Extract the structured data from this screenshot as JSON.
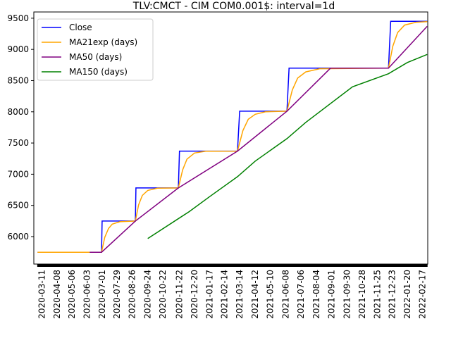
{
  "chart_data": {
    "type": "line",
    "title": "TLV:CMCT - CIM COM0.001$: interval=1d",
    "xlabel": "",
    "ylabel": "",
    "ylim": [
      5560,
      9600
    ],
    "xlim": [
      "2020-02-25",
      "2022-02-27"
    ],
    "yticks": [
      6000,
      6500,
      7000,
      7500,
      8000,
      8500,
      9000,
      9500
    ],
    "xticks": [
      "2020-03-11",
      "2020-04-08",
      "2020-05-06",
      "2020-06-03",
      "2020-07-01",
      "2020-07-29",
      "2020-08-26",
      "2020-09-24",
      "2020-10-22",
      "2020-11-22",
      "2020-12-20",
      "2021-01-17",
      "2021-02-14",
      "2021-03-14",
      "2021-04-12",
      "2021-05-10",
      "2021-06-08",
      "2021-07-06",
      "2021-08-04",
      "2021-09-01",
      "2021-09-30",
      "2021-10-28",
      "2021-11-25",
      "2021-12-23",
      "2022-01-20",
      "2022-02-17"
    ],
    "grid": false,
    "legend": "top-left",
    "series": [
      {
        "name": "Close",
        "color": "#0000ff",
        "points": [
          [
            "2020-03-03",
            5750
          ],
          [
            "2020-06-30",
            5750
          ],
          [
            "2020-07-01",
            6250
          ],
          [
            "2020-09-01",
            6250
          ],
          [
            "2020-09-02",
            6780
          ],
          [
            "2020-11-20",
            6780
          ],
          [
            "2020-11-22",
            7370
          ],
          [
            "2021-03-10",
            7370
          ],
          [
            "2021-03-14",
            8010
          ],
          [
            "2021-06-10",
            8010
          ],
          [
            "2021-06-14",
            8700
          ],
          [
            "2021-12-16",
            8700
          ],
          [
            "2021-12-20",
            9450
          ],
          [
            "2022-02-26",
            9450
          ]
        ]
      },
      {
        "name": "MA21exp (days)",
        "color": "#ffa500",
        "points": [
          [
            "2020-03-03",
            5750
          ],
          [
            "2020-06-30",
            5750
          ],
          [
            "2020-07-06",
            5990
          ],
          [
            "2020-07-13",
            6130
          ],
          [
            "2020-07-20",
            6200
          ],
          [
            "2020-08-03",
            6238
          ],
          [
            "2020-09-01",
            6250
          ],
          [
            "2020-09-07",
            6510
          ],
          [
            "2020-09-14",
            6660
          ],
          [
            "2020-09-24",
            6740
          ],
          [
            "2020-10-12",
            6775
          ],
          [
            "2020-11-20",
            6780
          ],
          [
            "2020-11-28",
            7070
          ],
          [
            "2020-12-06",
            7240
          ],
          [
            "2020-12-20",
            7340
          ],
          [
            "2021-01-10",
            7368
          ],
          [
            "2021-03-10",
            7370
          ],
          [
            "2021-03-20",
            7700
          ],
          [
            "2021-03-30",
            7880
          ],
          [
            "2021-04-12",
            7960
          ],
          [
            "2021-05-01",
            8000
          ],
          [
            "2021-06-10",
            8010
          ],
          [
            "2021-06-20",
            8350
          ],
          [
            "2021-06-30",
            8540
          ],
          [
            "2021-07-15",
            8640
          ],
          [
            "2021-08-10",
            8690
          ],
          [
            "2021-12-16",
            8700
          ],
          [
            "2021-12-24",
            9050
          ],
          [
            "2022-01-02",
            9270
          ],
          [
            "2022-01-15",
            9390
          ],
          [
            "2022-02-05",
            9435
          ],
          [
            "2022-02-26",
            9445
          ]
        ]
      },
      {
        "name": "MA50 (days)",
        "color": "#800080",
        "points": [
          [
            "2020-06-08",
            5750
          ],
          [
            "2020-06-30",
            5750
          ],
          [
            "2020-09-01",
            6250
          ],
          [
            "2020-11-20",
            6780
          ],
          [
            "2021-03-10",
            7370
          ],
          [
            "2021-06-10",
            8010
          ],
          [
            "2021-08-30",
            8700
          ],
          [
            "2021-12-16",
            8700
          ],
          [
            "2022-02-26",
            9370
          ]
        ]
      },
      {
        "name": "MA150 (days)",
        "color": "#008000",
        "points": [
          [
            "2020-09-24",
            5970
          ],
          [
            "2020-12-10",
            6400
          ],
          [
            "2021-01-17",
            6640
          ],
          [
            "2021-03-10",
            6960
          ],
          [
            "2021-04-12",
            7210
          ],
          [
            "2021-06-10",
            7570
          ],
          [
            "2021-07-15",
            7830
          ],
          [
            "2021-10-10",
            8400
          ],
          [
            "2021-12-16",
            8610
          ],
          [
            "2022-01-20",
            8790
          ],
          [
            "2022-02-26",
            8920
          ]
        ]
      }
    ]
  }
}
